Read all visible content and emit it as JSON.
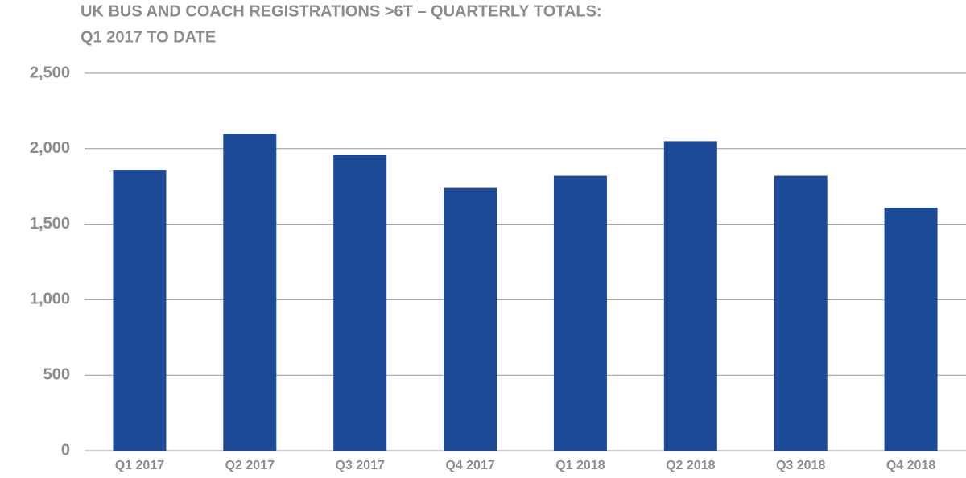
{
  "chart_data": {
    "type": "bar",
    "title": [
      "UK BUS AND COACH REGISTRATIONS >6T – QUARTERLY TOTALS:",
      "Q1 2017 TO DATE"
    ],
    "categories": [
      "Q1 2017",
      "Q2 2017",
      "Q3 2017",
      "Q4 2017",
      "Q1 2018",
      "Q2 2018",
      "Q3 2018",
      "Q4 2018"
    ],
    "values": [
      1860,
      2100,
      1960,
      1740,
      1820,
      2050,
      1820,
      1610
    ],
    "color": "#1d4a97",
    "ylim": [
      0,
      2500
    ],
    "yticks": [
      0,
      500,
      {
        "value": 1000,
        "label": "1,000"
      },
      {
        "value": 1500,
        "label": "1,500"
      },
      {
        "value": 2000,
        "label": "2,000"
      },
      {
        "value": 2500,
        "label": "2,500"
      }
    ],
    "grid": true
  }
}
